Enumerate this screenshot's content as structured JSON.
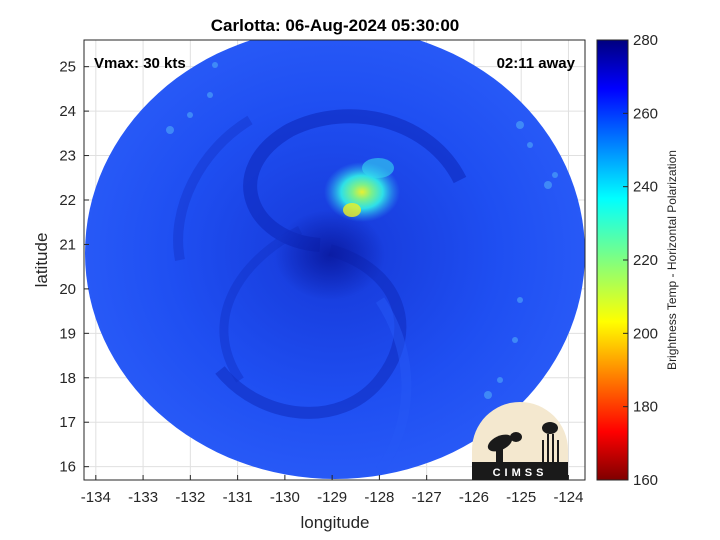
{
  "chart_data": {
    "type": "heatmap",
    "title": "Carlotta: 06-Aug-2024 05:30:00",
    "xlabel": "longitude",
    "ylabel": "latitude",
    "xlim": [
      -134.25,
      -123.65
    ],
    "ylim": [
      15.7,
      25.6
    ],
    "x_ticks": [
      -134,
      -133,
      -132,
      -131,
      -130,
      -129,
      -128,
      -127,
      -126,
      -125,
      -124
    ],
    "y_ticks": [
      16,
      17,
      18,
      19,
      20,
      21,
      22,
      23,
      24,
      25
    ],
    "grid": true,
    "annotations": {
      "vmax": "Vmax: 30 kts",
      "away": "02:11 away"
    },
    "storm_center": {
      "lon": -128.8,
      "lat": 20.9
    },
    "convection_peak": {
      "lon": -128.4,
      "lat": 21.8,
      "temp": 215
    },
    "colorbar": {
      "label": "Brightness Temp - Horizontal Polarization",
      "range": [
        160,
        280
      ],
      "ticks": [
        280,
        260,
        240,
        220,
        200,
        180,
        160
      ],
      "colormap": "jet"
    }
  },
  "logo": {
    "text": "CIMSS",
    "background": "#f4e8cf"
  },
  "colors": {
    "swath_base": "#1f4ff2",
    "swath_dark": "#0a1fa0",
    "background": "#ffffff",
    "grid": "#e0e0e0"
  }
}
